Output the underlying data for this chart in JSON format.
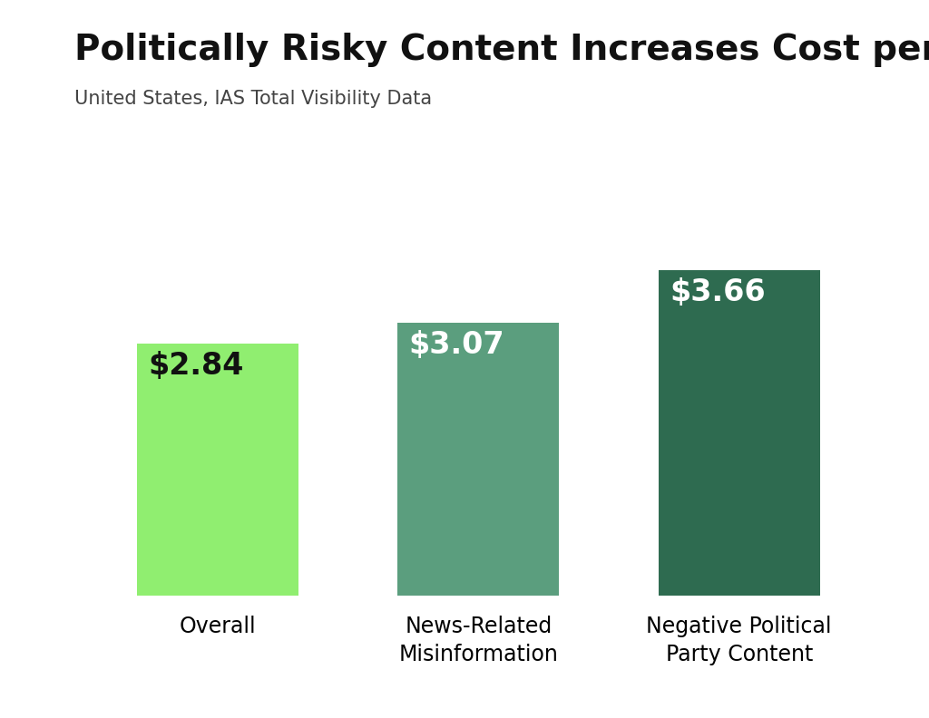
{
  "title": "Politically Risky Content Increases Cost per Conversion",
  "subtitle": "United States, IAS Total Visibility Data",
  "categories": [
    "Overall",
    "News-Related\nMisinformation",
    "Negative Political\nParty Content"
  ],
  "values": [
    2.84,
    3.07,
    3.66
  ],
  "labels": [
    "$2.84",
    "$3.07",
    "$3.66"
  ],
  "bar_colors": [
    "#90EE70",
    "#5B9E7E",
    "#2E6B50"
  ],
  "label_colors": [
    "#111111",
    "#ffffff",
    "#ffffff"
  ],
  "background_color": "#ffffff",
  "title_fontsize": 28,
  "subtitle_fontsize": 15,
  "label_fontsize": 24,
  "tick_fontsize": 17,
  "ylim": [
    0,
    4.2
  ],
  "bar_width": 0.62
}
